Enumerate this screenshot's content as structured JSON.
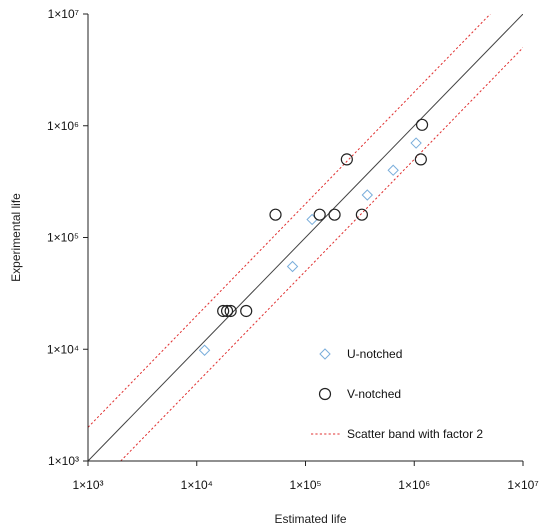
{
  "chart_data": {
    "type": "scatter",
    "title": "",
    "xlabel": "Estimated life",
    "ylabel": "Experimental life",
    "xscale": "log",
    "yscale": "log",
    "xlim": [
      1000,
      10000000
    ],
    "ylim": [
      1000,
      10000000
    ],
    "x_ticks": [
      {
        "value": 1000,
        "label": "1×10³"
      },
      {
        "value": 10000,
        "label": "1×10⁴"
      },
      {
        "value": 100000,
        "label": "1×10⁵"
      },
      {
        "value": 1000000,
        "label": "1×10⁶"
      },
      {
        "value": 10000000,
        "label": "1×10⁷"
      }
    ],
    "y_ticks": [
      {
        "value": 1000,
        "label": "1×10³"
      },
      {
        "value": 10000,
        "label": "1×10⁴"
      },
      {
        "value": 100000,
        "label": "1×10⁵"
      },
      {
        "value": 1000000,
        "label": "1×10⁶"
      },
      {
        "value": 10000000,
        "label": "1×10⁷"
      }
    ],
    "grid": false,
    "legend_position": "bottom-right",
    "series": [
      {
        "name": "U-notched",
        "marker": "diamond",
        "color": "#7aaedb",
        "points": [
          {
            "x": 11800,
            "y": 9800
          },
          {
            "x": 76000,
            "y": 55000
          },
          {
            "x": 115000,
            "y": 145000
          },
          {
            "x": 370000,
            "y": 240000
          },
          {
            "x": 640000,
            "y": 400000
          },
          {
            "x": 1040000,
            "y": 700000
          }
        ]
      },
      {
        "name": "V-notched",
        "marker": "circle",
        "color": "#222222",
        "points": [
          {
            "x": 17500,
            "y": 22000
          },
          {
            "x": 19000,
            "y": 22000
          },
          {
            "x": 20500,
            "y": 22000
          },
          {
            "x": 28500,
            "y": 22000
          },
          {
            "x": 53000,
            "y": 160000
          },
          {
            "x": 135000,
            "y": 160000
          },
          {
            "x": 185000,
            "y": 160000
          },
          {
            "x": 330000,
            "y": 160000
          },
          {
            "x": 240000,
            "y": 500000
          },
          {
            "x": 1150000,
            "y": 500000
          },
          {
            "x": 1180000,
            "y": 1020000
          }
        ]
      }
    ],
    "reference_lines": [
      {
        "name": "",
        "type": "y=x",
        "color": "#444444",
        "style": "solid"
      },
      {
        "name": "Scatter band with factor 2",
        "type": "factor-2 band",
        "factor": 2,
        "color": "#e03030",
        "style": "dotted"
      }
    ]
  }
}
